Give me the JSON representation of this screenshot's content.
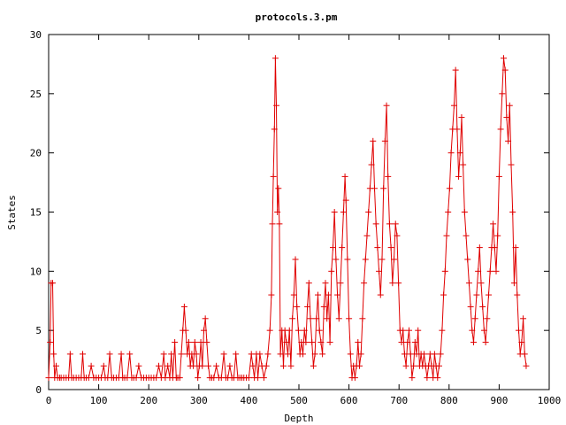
{
  "chart_data": {
    "type": "line",
    "title": "protocols.3.pm",
    "xlabel": "Depth",
    "ylabel": "States",
    "xlim": [
      0,
      1000
    ],
    "ylim": [
      0,
      30
    ],
    "x_ticks": [
      "0",
      "100",
      "200",
      "300",
      "400",
      "500",
      "600",
      "700",
      "800",
      "900",
      "1000"
    ],
    "y_ticks": [
      "0",
      "5",
      "10",
      "15",
      "20",
      "25",
      "30"
    ],
    "grid": false,
    "legend": "none",
    "marker": "plus",
    "colors": {
      "series": "#e00000",
      "axes": "#000000"
    },
    "series": [
      {
        "points": [
          [
            0,
            1
          ],
          [
            3,
            4
          ],
          [
            5,
            9
          ],
          [
            8,
            9
          ],
          [
            10,
            3
          ],
          [
            12,
            1
          ],
          [
            15,
            2
          ],
          [
            18,
            1
          ],
          [
            22,
            1
          ],
          [
            25,
            1
          ],
          [
            30,
            1
          ],
          [
            35,
            1
          ],
          [
            40,
            1
          ],
          [
            43,
            3
          ],
          [
            46,
            1
          ],
          [
            50,
            1
          ],
          [
            55,
            1
          ],
          [
            60,
            1
          ],
          [
            65,
            1
          ],
          [
            68,
            3
          ],
          [
            71,
            1
          ],
          [
            75,
            1
          ],
          [
            80,
            1
          ],
          [
            85,
            2
          ],
          [
            90,
            1
          ],
          [
            95,
            1
          ],
          [
            100,
            1
          ],
          [
            105,
            1
          ],
          [
            110,
            2
          ],
          [
            113,
            1
          ],
          [
            118,
            1
          ],
          [
            122,
            3
          ],
          [
            126,
            1
          ],
          [
            130,
            1
          ],
          [
            135,
            1
          ],
          [
            140,
            1
          ],
          [
            145,
            3
          ],
          [
            148,
            1
          ],
          [
            152,
            1
          ],
          [
            157,
            1
          ],
          [
            162,
            3
          ],
          [
            166,
            1
          ],
          [
            170,
            1
          ],
          [
            175,
            1
          ],
          [
            180,
            2
          ],
          [
            185,
            1
          ],
          [
            190,
            1
          ],
          [
            195,
            1
          ],
          [
            200,
            1
          ],
          [
            205,
            1
          ],
          [
            210,
            1
          ],
          [
            215,
            1
          ],
          [
            220,
            2
          ],
          [
            225,
            1
          ],
          [
            230,
            3
          ],
          [
            233,
            1
          ],
          [
            238,
            2
          ],
          [
            242,
            1
          ],
          [
            245,
            3
          ],
          [
            248,
            1
          ],
          [
            252,
            4
          ],
          [
            255,
            1
          ],
          [
            258,
            1
          ],
          [
            262,
            1
          ],
          [
            265,
            3
          ],
          [
            268,
            5
          ],
          [
            271,
            7
          ],
          [
            274,
            5
          ],
          [
            277,
            3
          ],
          [
            280,
            4
          ],
          [
            283,
            2
          ],
          [
            286,
            3
          ],
          [
            289,
            2
          ],
          [
            292,
            4
          ],
          [
            295,
            3
          ],
          [
            298,
            1
          ],
          [
            301,
            2
          ],
          [
            304,
            4
          ],
          [
            307,
            2
          ],
          [
            310,
            5
          ],
          [
            313,
            6
          ],
          [
            316,
            4
          ],
          [
            319,
            2
          ],
          [
            322,
            1
          ],
          [
            326,
            1
          ],
          [
            330,
            1
          ],
          [
            335,
            2
          ],
          [
            340,
            1
          ],
          [
            345,
            1
          ],
          [
            350,
            3
          ],
          [
            354,
            1
          ],
          [
            358,
            1
          ],
          [
            362,
            2
          ],
          [
            366,
            1
          ],
          [
            370,
            1
          ],
          [
            374,
            3
          ],
          [
            378,
            1
          ],
          [
            382,
            1
          ],
          [
            386,
            1
          ],
          [
            390,
            1
          ],
          [
            395,
            1
          ],
          [
            400,
            1
          ],
          [
            405,
            3
          ],
          [
            408,
            2
          ],
          [
            411,
            1
          ],
          [
            415,
            3
          ],
          [
            418,
            1
          ],
          [
            422,
            3
          ],
          [
            426,
            2
          ],
          [
            430,
            1
          ],
          [
            435,
            2
          ],
          [
            438,
            3
          ],
          [
            442,
            5
          ],
          [
            445,
            8
          ],
          [
            447,
            14
          ],
          [
            449,
            18
          ],
          [
            451,
            22
          ],
          [
            453,
            28
          ],
          [
            455,
            24
          ],
          [
            457,
            15
          ],
          [
            459,
            17
          ],
          [
            461,
            14
          ],
          [
            463,
            3
          ],
          [
            466,
            5
          ],
          [
            469,
            2
          ],
          [
            472,
            5
          ],
          [
            475,
            4
          ],
          [
            478,
            3
          ],
          [
            481,
            5
          ],
          [
            484,
            2
          ],
          [
            487,
            6
          ],
          [
            490,
            8
          ],
          [
            493,
            11
          ],
          [
            496,
            7
          ],
          [
            499,
            5
          ],
          [
            502,
            3
          ],
          [
            505,
            4
          ],
          [
            508,
            3
          ],
          [
            511,
            5
          ],
          [
            514,
            4
          ],
          [
            517,
            7
          ],
          [
            520,
            9
          ],
          [
            523,
            6
          ],
          [
            526,
            4
          ],
          [
            529,
            2
          ],
          [
            532,
            3
          ],
          [
            535,
            6
          ],
          [
            538,
            8
          ],
          [
            541,
            5
          ],
          [
            544,
            4
          ],
          [
            547,
            3
          ],
          [
            550,
            7
          ],
          [
            553,
            9
          ],
          [
            556,
            6
          ],
          [
            559,
            8
          ],
          [
            562,
            4
          ],
          [
            565,
            10
          ],
          [
            568,
            12
          ],
          [
            571,
            15
          ],
          [
            574,
            11
          ],
          [
            577,
            8
          ],
          [
            580,
            6
          ],
          [
            583,
            9
          ],
          [
            586,
            12
          ],
          [
            589,
            15
          ],
          [
            592,
            18
          ],
          [
            594,
            16
          ],
          [
            597,
            11
          ],
          [
            600,
            6
          ],
          [
            603,
            3
          ],
          [
            606,
            1
          ],
          [
            609,
            2
          ],
          [
            612,
            1
          ],
          [
            615,
            2
          ],
          [
            618,
            4
          ],
          [
            621,
            2
          ],
          [
            624,
            3
          ],
          [
            627,
            6
          ],
          [
            630,
            9
          ],
          [
            633,
            11
          ],
          [
            636,
            13
          ],
          [
            639,
            15
          ],
          [
            642,
            17
          ],
          [
            645,
            19
          ],
          [
            648,
            21
          ],
          [
            651,
            17
          ],
          [
            654,
            14
          ],
          [
            657,
            12
          ],
          [
            660,
            10
          ],
          [
            663,
            8
          ],
          [
            666,
            11
          ],
          [
            669,
            17
          ],
          [
            672,
            21
          ],
          [
            675,
            24
          ],
          [
            678,
            18
          ],
          [
            681,
            14
          ],
          [
            684,
            12
          ],
          [
            687,
            9
          ],
          [
            690,
            11
          ],
          [
            693,
            14
          ],
          [
            696,
            13
          ],
          [
            699,
            9
          ],
          [
            702,
            5
          ],
          [
            705,
            4
          ],
          [
            708,
            5
          ],
          [
            711,
            3
          ],
          [
            714,
            2
          ],
          [
            717,
            4
          ],
          [
            720,
            5
          ],
          [
            723,
            3
          ],
          [
            726,
            1
          ],
          [
            729,
            2
          ],
          [
            732,
            4
          ],
          [
            735,
            3
          ],
          [
            738,
            5
          ],
          [
            741,
            2
          ],
          [
            744,
            3
          ],
          [
            747,
            2
          ],
          [
            750,
            3
          ],
          [
            753,
            2
          ],
          [
            756,
            1
          ],
          [
            759,
            2
          ],
          [
            762,
            3
          ],
          [
            765,
            2
          ],
          [
            768,
            1
          ],
          [
            771,
            3
          ],
          [
            774,
            2
          ],
          [
            777,
            1
          ],
          [
            780,
            2
          ],
          [
            783,
            3
          ],
          [
            786,
            5
          ],
          [
            789,
            8
          ],
          [
            792,
            10
          ],
          [
            795,
            13
          ],
          [
            798,
            15
          ],
          [
            801,
            17
          ],
          [
            804,
            20
          ],
          [
            807,
            22
          ],
          [
            810,
            24
          ],
          [
            813,
            27
          ],
          [
            816,
            22
          ],
          [
            819,
            18
          ],
          [
            822,
            20
          ],
          [
            825,
            23
          ],
          [
            828,
            19
          ],
          [
            831,
            15
          ],
          [
            834,
            13
          ],
          [
            837,
            11
          ],
          [
            840,
            9
          ],
          [
            843,
            7
          ],
          [
            846,
            5
          ],
          [
            849,
            4
          ],
          [
            852,
            6
          ],
          [
            855,
            8
          ],
          [
            858,
            10
          ],
          [
            861,
            12
          ],
          [
            864,
            9
          ],
          [
            867,
            7
          ],
          [
            870,
            5
          ],
          [
            873,
            4
          ],
          [
            876,
            6
          ],
          [
            879,
            8
          ],
          [
            882,
            10
          ],
          [
            885,
            12
          ],
          [
            888,
            14
          ],
          [
            891,
            12
          ],
          [
            894,
            10
          ],
          [
            897,
            13
          ],
          [
            900,
            18
          ],
          [
            903,
            22
          ],
          [
            906,
            25
          ],
          [
            909,
            28
          ],
          [
            912,
            27
          ],
          [
            915,
            23
          ],
          [
            918,
            21
          ],
          [
            921,
            24
          ],
          [
            924,
            19
          ],
          [
            927,
            15
          ],
          [
            930,
            9
          ],
          [
            933,
            12
          ],
          [
            936,
            8
          ],
          [
            939,
            5
          ],
          [
            942,
            3
          ],
          [
            945,
            4
          ],
          [
            948,
            6
          ],
          [
            951,
            3
          ],
          [
            954,
            2
          ]
        ]
      }
    ]
  }
}
